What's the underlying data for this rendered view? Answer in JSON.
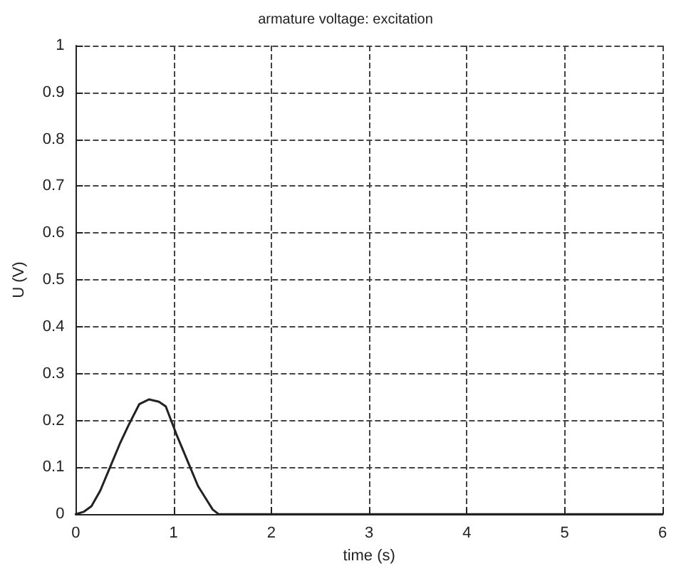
{
  "chart_data": {
    "type": "line",
    "title": "armature voltage: excitation",
    "xlabel": "time (s)",
    "ylabel": "U (V)",
    "x": [
      0,
      0.08,
      0.16,
      0.25,
      0.35,
      0.45,
      0.54,
      0.65,
      0.75,
      0.85,
      0.92,
      1.03,
      1.1,
      1.17,
      1.25,
      1.34,
      1.4,
      1.46,
      2,
      3,
      4,
      5,
      6
    ],
    "series": [
      {
        "color": "#222222",
        "values": [
          0,
          0.005,
          0.017,
          0.05,
          0.1,
          0.15,
          0.19,
          0.235,
          0.245,
          0.24,
          0.23,
          0.17,
          0.135,
          0.1,
          0.06,
          0.03,
          0.01,
          0,
          0,
          0,
          0,
          0,
          0
        ]
      }
    ],
    "xlim": [
      0,
      6
    ],
    "xticks": [
      0,
      1,
      2,
      3,
      4,
      5,
      6
    ],
    "ylim": [
      0,
      1
    ],
    "yticks": [
      0,
      0.1,
      0.2,
      0.3,
      0.4,
      0.5,
      0.6,
      0.7,
      0.8,
      0.9,
      1
    ],
    "grid": true,
    "marker": "none",
    "line_style": "solid"
  }
}
